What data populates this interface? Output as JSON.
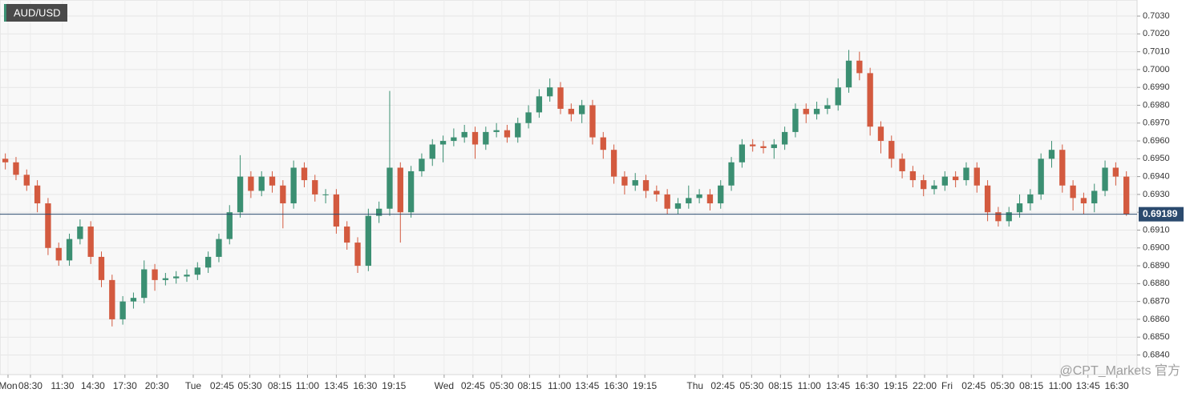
{
  "chart_data": {
    "type": "candlestick",
    "title": "AUD/USD",
    "up_color": "#3b8f72",
    "down_color": "#d35a3f",
    "grid": true,
    "last_price": 0.69189,
    "last_price_color": "#2b4a6e",
    "watermark": "@CPT_Markets 官方",
    "xlim": [
      0,
      106.5
    ],
    "ylim": [
      0.6829,
      0.7039
    ],
    "yticks": [
      {
        "value": 0.684,
        "label": "0.6840"
      },
      {
        "value": 0.685,
        "label": "0.6850"
      },
      {
        "value": 0.686,
        "label": "0.6860"
      },
      {
        "value": 0.687,
        "label": "0.6870"
      },
      {
        "value": 0.688,
        "label": "0.6880"
      },
      {
        "value": 0.689,
        "label": "0.6890"
      },
      {
        "value": 0.69,
        "label": "0.6900"
      },
      {
        "value": 0.691,
        "label": "0.6910"
      },
      {
        "value": 0.692,
        "label": "0.6920"
      },
      {
        "value": 0.693,
        "label": "0.6930"
      },
      {
        "value": 0.694,
        "label": "0.6940"
      },
      {
        "value": 0.695,
        "label": "0.6950"
      },
      {
        "value": 0.696,
        "label": "0.6960"
      },
      {
        "value": 0.697,
        "label": "0.6970"
      },
      {
        "value": 0.698,
        "label": "0.6980"
      },
      {
        "value": 0.699,
        "label": "0.6990"
      },
      {
        "value": 0.7,
        "label": "0.7000"
      },
      {
        "value": 0.701,
        "label": "0.7010"
      },
      {
        "value": 0.702,
        "label": "0.7020"
      },
      {
        "value": 0.703,
        "label": "0.7030"
      }
    ],
    "xticks": [
      {
        "value": 0.75,
        "label": "Mon"
      },
      {
        "value": 2.85,
        "label": "08:30"
      },
      {
        "value": 5.85,
        "label": "11:30"
      },
      {
        "value": 8.7,
        "label": "14:30"
      },
      {
        "value": 11.7,
        "label": "17:30"
      },
      {
        "value": 14.7,
        "label": "20:30"
      },
      {
        "value": 18.1,
        "label": "Tue"
      },
      {
        "value": 20.8,
        "label": "02:45"
      },
      {
        "value": 23.4,
        "label": "05:30"
      },
      {
        "value": 26.2,
        "label": "08:15"
      },
      {
        "value": 28.8,
        "label": "11:00"
      },
      {
        "value": 31.5,
        "label": "13:45"
      },
      {
        "value": 34.2,
        "label": "16:30"
      },
      {
        "value": 36.9,
        "label": "19:15"
      },
      {
        "value": 41.6,
        "label": "Wed"
      },
      {
        "value": 44.3,
        "label": "02:45"
      },
      {
        "value": 47,
        "label": "05:30"
      },
      {
        "value": 49.6,
        "label": "08:15"
      },
      {
        "value": 52.4,
        "label": "11:00"
      },
      {
        "value": 55,
        "label": "13:45"
      },
      {
        "value": 57.7,
        "label": "16:30"
      },
      {
        "value": 60.4,
        "label": "19:15"
      },
      {
        "value": 65.1,
        "label": "Thu"
      },
      {
        "value": 67.7,
        "label": "02:45"
      },
      {
        "value": 70.4,
        "label": "05:30"
      },
      {
        "value": 73.1,
        "label": "08:15"
      },
      {
        "value": 75.8,
        "label": "11:00"
      },
      {
        "value": 78.5,
        "label": "13:45"
      },
      {
        "value": 81.2,
        "label": "16:30"
      },
      {
        "value": 83.9,
        "label": "19:15"
      },
      {
        "value": 86.6,
        "label": "22:00"
      },
      {
        "value": 88.7,
        "label": "Fri"
      },
      {
        "value": 91.2,
        "label": "02:45"
      },
      {
        "value": 93.9,
        "label": "05:30"
      },
      {
        "value": 96.6,
        "label": "08:15"
      },
      {
        "value": 99.3,
        "label": "11:00"
      },
      {
        "value": 101.9,
        "label": "13:45"
      },
      {
        "value": 104.6,
        "label": "16:30"
      }
    ],
    "open": [
      0.695,
      0.6948,
      0.6941,
      0.6935,
      0.6925,
      0.69,
      0.6893,
      0.6905,
      0.6912,
      0.6895,
      0.6882,
      0.686,
      0.687,
      0.6872,
      0.6888,
      0.6882,
      0.6883,
      0.6884,
      0.6885,
      0.6889,
      0.6895,
      0.6905,
      0.692,
      0.694,
      0.6932,
      0.694,
      0.6935,
      0.6925,
      0.6945,
      0.6938,
      0.693,
      0.693,
      0.6912,
      0.6903,
      0.689,
      0.6918,
      0.6922,
      0.6945,
      0.692,
      0.6943,
      0.695,
      0.6958,
      0.696,
      0.6962,
      0.6965,
      0.6958,
      0.6965,
      0.6966,
      0.6962,
      0.697,
      0.6976,
      0.6985,
      0.699,
      0.6978,
      0.6975,
      0.698,
      0.6962,
      0.6955,
      0.694,
      0.6935,
      0.6938,
      0.6932,
      0.693,
      0.6922,
      0.6925,
      0.6928,
      0.693,
      0.6925,
      0.6935,
      0.6948,
      0.6958,
      0.6957,
      0.6956,
      0.6958,
      0.6965,
      0.6978,
      0.6975,
      0.6978,
      0.698,
      0.699,
      0.7005,
      0.6998,
      0.6968,
      0.696,
      0.695,
      0.6943,
      0.6938,
      0.6933,
      0.6935,
      0.694,
      0.6938,
      0.6945,
      0.6935,
      0.692,
      0.6915,
      0.692,
      0.6925,
      0.693,
      0.695,
      0.6955,
      0.6935,
      0.6928,
      0.6925,
      0.6932,
      0.6945,
      0.694
    ],
    "high": [
      0.6953,
      0.6951,
      0.6944,
      0.6938,
      0.6928,
      0.6903,
      0.6908,
      0.6916,
      0.6915,
      0.6898,
      0.6885,
      0.6873,
      0.6875,
      0.6893,
      0.6891,
      0.6886,
      0.6887,
      0.6888,
      0.6892,
      0.6898,
      0.6908,
      0.6924,
      0.6952,
      0.6943,
      0.6943,
      0.6943,
      0.6938,
      0.6949,
      0.6948,
      0.6941,
      0.6933,
      0.6933,
      0.6915,
      0.6906,
      0.6922,
      0.6926,
      0.6988,
      0.6948,
      0.6946,
      0.6953,
      0.6961,
      0.6963,
      0.6967,
      0.6969,
      0.6968,
      0.6968,
      0.697,
      0.6969,
      0.6973,
      0.698,
      0.6989,
      0.6995,
      0.6993,
      0.6981,
      0.6983,
      0.6983,
      0.6965,
      0.6958,
      0.6943,
      0.6942,
      0.6941,
      0.6935,
      0.6933,
      0.6928,
      0.6935,
      0.6933,
      0.6933,
      0.6938,
      0.6951,
      0.6961,
      0.6961,
      0.696,
      0.6961,
      0.6968,
      0.6981,
      0.6981,
      0.6982,
      0.6984,
      0.6995,
      0.7011,
      0.701,
      0.7001,
      0.6971,
      0.6963,
      0.6953,
      0.6946,
      0.6941,
      0.6938,
      0.6943,
      0.6943,
      0.6948,
      0.6948,
      0.6938,
      0.6923,
      0.6923,
      0.693,
      0.6933,
      0.6953,
      0.696,
      0.6958,
      0.6938,
      0.6931,
      0.6936,
      0.6949,
      0.6948,
      0.6943
    ],
    "low": [
      0.6944,
      0.6938,
      0.6932,
      0.692,
      0.6896,
      0.689,
      0.689,
      0.6902,
      0.6891,
      0.6878,
      0.6856,
      0.6857,
      0.6866,
      0.6869,
      0.6876,
      0.6879,
      0.688,
      0.6881,
      0.6882,
      0.6886,
      0.6892,
      0.6902,
      0.6917,
      0.6928,
      0.6929,
      0.6931,
      0.6911,
      0.6922,
      0.6934,
      0.6926,
      0.6925,
      0.6908,
      0.6899,
      0.6886,
      0.6887,
      0.6914,
      0.6918,
      0.6903,
      0.6917,
      0.694,
      0.6946,
      0.6948,
      0.6957,
      0.6959,
      0.695,
      0.6955,
      0.6962,
      0.6959,
      0.6959,
      0.6967,
      0.6973,
      0.6982,
      0.6975,
      0.6971,
      0.697,
      0.6958,
      0.695,
      0.6936,
      0.693,
      0.6932,
      0.6928,
      0.6926,
      0.6919,
      0.6919,
      0.6922,
      0.6925,
      0.6921,
      0.6922,
      0.6932,
      0.6945,
      0.6954,
      0.6953,
      0.695,
      0.6955,
      0.6962,
      0.697,
      0.6972,
      0.6975,
      0.6977,
      0.6987,
      0.6994,
      0.6963,
      0.6953,
      0.6945,
      0.6939,
      0.6934,
      0.6929,
      0.693,
      0.6932,
      0.6934,
      0.6935,
      0.6931,
      0.6915,
      0.6912,
      0.6912,
      0.6917,
      0.6921,
      0.6927,
      0.6945,
      0.6931,
      0.6921,
      0.6919,
      0.692,
      0.6929,
      0.6935,
      0.6918
    ],
    "close": [
      0.6948,
      0.6941,
      0.6935,
      0.6925,
      0.69,
      0.6893,
      0.6905,
      0.6912,
      0.6895,
      0.6882,
      0.686,
      0.687,
      0.6872,
      0.6888,
      0.6882,
      0.6883,
      0.6884,
      0.6885,
      0.6889,
      0.6895,
      0.6905,
      0.692,
      0.694,
      0.6932,
      0.694,
      0.6935,
      0.6925,
      0.6945,
      0.6938,
      0.693,
      0.693,
      0.6912,
      0.6903,
      0.689,
      0.6918,
      0.6922,
      0.6945,
      0.692,
      0.6943,
      0.695,
      0.6958,
      0.696,
      0.6962,
      0.6965,
      0.6958,
      0.6965,
      0.6966,
      0.6962,
      0.697,
      0.6976,
      0.6985,
      0.699,
      0.6978,
      0.6975,
      0.698,
      0.6962,
      0.6955,
      0.694,
      0.6935,
      0.6938,
      0.6932,
      0.693,
      0.6922,
      0.6925,
      0.6928,
      0.693,
      0.6925,
      0.6935,
      0.6948,
      0.6958,
      0.6957,
      0.6956,
      0.6958,
      0.6965,
      0.6978,
      0.6975,
      0.6978,
      0.698,
      0.699,
      0.7005,
      0.6998,
      0.6968,
      0.696,
      0.695,
      0.6943,
      0.6938,
      0.6933,
      0.6935,
      0.694,
      0.6938,
      0.6945,
      0.6935,
      0.692,
      0.6915,
      0.692,
      0.6925,
      0.693,
      0.695,
      0.6955,
      0.6935,
      0.6928,
      0.6925,
      0.6932,
      0.6945,
      0.694,
      0.6919
    ]
  }
}
